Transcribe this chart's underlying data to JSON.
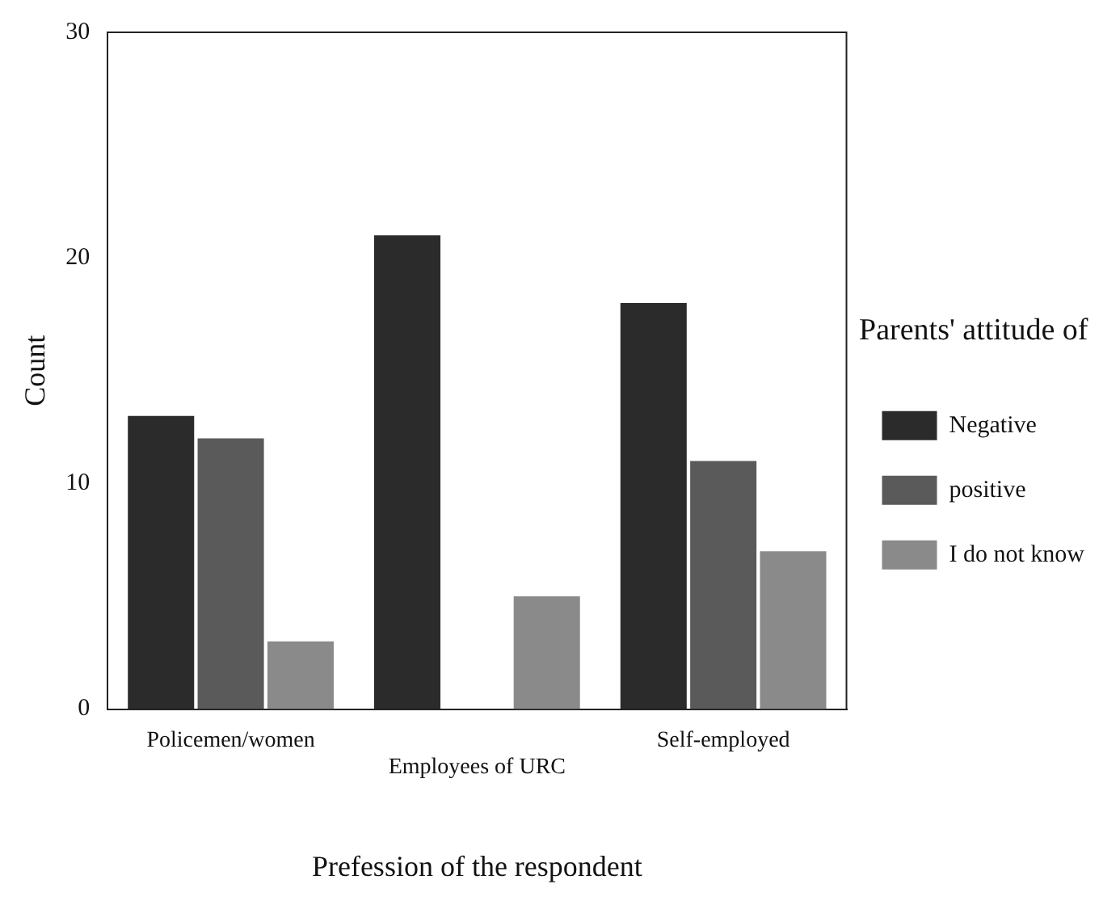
{
  "chart_data": {
    "type": "bar",
    "xlabel": "Prefession of the respondent",
    "ylabel": "Count",
    "legend_title": "Parents' attitude of",
    "categories": [
      "Policemen/women",
      "Employees of URC",
      "Self-employed"
    ],
    "series": [
      {
        "name": "Negative",
        "color": "#2b2b2b",
        "values": [
          13,
          21,
          18
        ]
      },
      {
        "name": "positive",
        "color": "#5a5a5a",
        "values": [
          12,
          0,
          11
        ]
      },
      {
        "name": "I do not know",
        "color": "#8a8a8a",
        "values": [
          3,
          5,
          7
        ]
      }
    ],
    "ylim": [
      0,
      30
    ],
    "yticks": [
      0,
      10,
      20,
      30
    ],
    "grid": false,
    "legend": "right"
  }
}
